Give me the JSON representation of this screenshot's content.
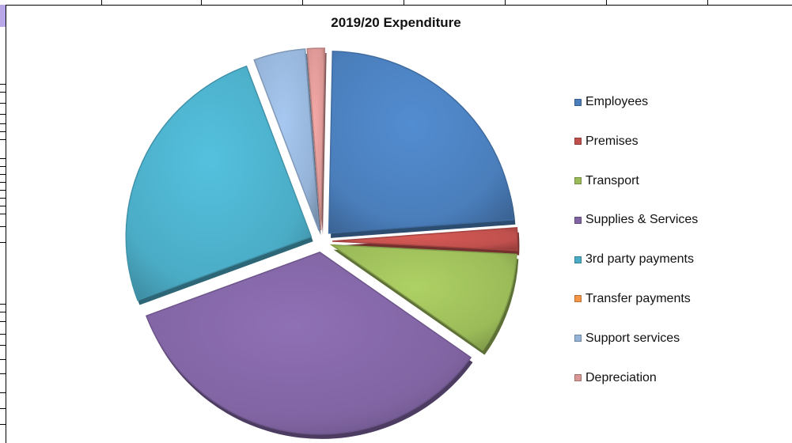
{
  "chart_data": {
    "type": "pie",
    "title": "2019/20 Expenditure",
    "legend_position": "right",
    "series": [
      {
        "name": "Employees",
        "value": 23.5,
        "color": "#4a7ebb",
        "exploded": true
      },
      {
        "name": "Premises",
        "value": 2.0,
        "color": "#c0504d",
        "exploded": true
      },
      {
        "name": "Transport",
        "value": 9.0,
        "color": "#9bbb59",
        "exploded": true
      },
      {
        "name": "Supplies & Services",
        "value": 34.5,
        "color": "#8064a2",
        "exploded": true
      },
      {
        "name": "3rd party payments",
        "value": 25.0,
        "color": "#4bacc6",
        "exploded": true
      },
      {
        "name": "Transfer payments",
        "value": 0.0,
        "color": "#f79646",
        "exploded": true
      },
      {
        "name": "Support services",
        "value": 4.5,
        "color": "#95b3d7",
        "exploded": true
      },
      {
        "name": "Depreciation",
        "value": 1.5,
        "color": "#d99694",
        "exploded": true
      }
    ]
  }
}
